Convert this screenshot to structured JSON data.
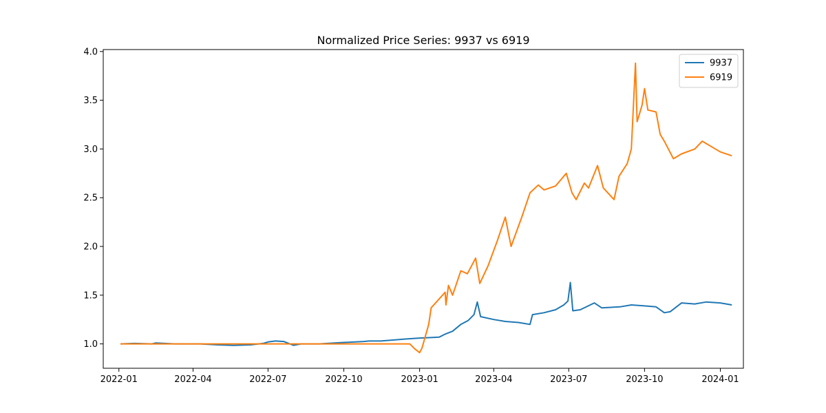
{
  "chart_data": {
    "type": "line",
    "title": "Normalized Price Series: 9937 vs 6919",
    "xlabel": "",
    "ylabel": "",
    "x_ticks": [
      "2022-01",
      "2022-04",
      "2022-07",
      "2022-10",
      "2023-01",
      "2023-04",
      "2023-07",
      "2023-10",
      "2024-01"
    ],
    "xlim": [
      "2021-12-13",
      "2024-01-29"
    ],
    "y_ticks": [
      "1.0",
      "1.5",
      "2.0",
      "2.5",
      "3.0",
      "3.5",
      "4.0"
    ],
    "ylim": [
      0.75,
      4.02
    ],
    "grid": false,
    "legend_position": "top-right",
    "series": [
      {
        "name": "9937",
        "color": "#1f77b4",
        "points": [
          [
            "2022-01-03",
            1.0
          ],
          [
            "2022-01-20",
            1.005
          ],
          [
            "2022-02-10",
            1.0
          ],
          [
            "2022-02-15",
            1.01
          ],
          [
            "2022-03-10",
            1.0
          ],
          [
            "2022-04-10",
            1.0
          ],
          [
            "2022-05-01",
            0.99
          ],
          [
            "2022-05-20",
            0.985
          ],
          [
            "2022-06-10",
            0.99
          ],
          [
            "2022-06-25",
            1.005
          ],
          [
            "2022-07-01",
            1.02
          ],
          [
            "2022-07-10",
            1.03
          ],
          [
            "2022-07-20",
            1.025
          ],
          [
            "2022-08-01",
            0.985
          ],
          [
            "2022-08-10",
            1.0
          ],
          [
            "2022-09-01",
            1.0
          ],
          [
            "2022-09-20",
            1.01
          ],
          [
            "2022-10-01",
            1.015
          ],
          [
            "2022-10-15",
            1.02
          ],
          [
            "2022-10-25",
            1.025
          ],
          [
            "2022-11-01",
            1.03
          ],
          [
            "2022-11-15",
            1.03
          ],
          [
            "2022-12-01",
            1.04
          ],
          [
            "2022-12-15",
            1.05
          ],
          [
            "2023-01-01",
            1.06
          ],
          [
            "2023-01-15",
            1.065
          ],
          [
            "2023-01-25",
            1.07
          ],
          [
            "2023-02-01",
            1.1
          ],
          [
            "2023-02-10",
            1.13
          ],
          [
            "2023-02-20",
            1.2
          ],
          [
            "2023-03-01",
            1.24
          ],
          [
            "2023-03-08",
            1.3
          ],
          [
            "2023-03-12",
            1.43
          ],
          [
            "2023-03-16",
            1.28
          ],
          [
            "2023-04-01",
            1.25
          ],
          [
            "2023-04-15",
            1.23
          ],
          [
            "2023-05-01",
            1.22
          ],
          [
            "2023-05-15",
            1.2
          ],
          [
            "2023-05-18",
            1.3
          ],
          [
            "2023-06-01",
            1.32
          ],
          [
            "2023-06-15",
            1.35
          ],
          [
            "2023-06-25",
            1.4
          ],
          [
            "2023-06-30",
            1.44
          ],
          [
            "2023-07-03",
            1.63
          ],
          [
            "2023-07-06",
            1.34
          ],
          [
            "2023-07-15",
            1.35
          ],
          [
            "2023-08-01",
            1.42
          ],
          [
            "2023-08-10",
            1.37
          ],
          [
            "2023-09-01",
            1.38
          ],
          [
            "2023-09-15",
            1.4
          ],
          [
            "2023-10-01",
            1.39
          ],
          [
            "2023-10-15",
            1.38
          ],
          [
            "2023-10-25",
            1.32
          ],
          [
            "2023-11-01",
            1.33
          ],
          [
            "2023-11-15",
            1.42
          ],
          [
            "2023-12-01",
            1.41
          ],
          [
            "2023-12-15",
            1.43
          ],
          [
            "2024-01-01",
            1.42
          ],
          [
            "2024-01-15",
            1.4
          ]
        ]
      },
      {
        "name": "6919",
        "color": "#ff7f0e",
        "points": [
          [
            "2022-01-03",
            1.0
          ],
          [
            "2022-12-20",
            1.0
          ],
          [
            "2022-12-26",
            0.95
          ],
          [
            "2023-01-01",
            0.91
          ],
          [
            "2023-01-04",
            0.96
          ],
          [
            "2023-01-07",
            1.05
          ],
          [
            "2023-01-12",
            1.2
          ],
          [
            "2023-01-15",
            1.37
          ],
          [
            "2023-02-01",
            1.53
          ],
          [
            "2023-02-02",
            1.4
          ],
          [
            "2023-02-05",
            1.6
          ],
          [
            "2023-02-10",
            1.5
          ],
          [
            "2023-02-20",
            1.75
          ],
          [
            "2023-02-28",
            1.72
          ],
          [
            "2023-03-10",
            1.88
          ],
          [
            "2023-03-15",
            1.62
          ],
          [
            "2023-03-25",
            1.8
          ],
          [
            "2023-04-05",
            2.05
          ],
          [
            "2023-04-15",
            2.3
          ],
          [
            "2023-04-22",
            2.0
          ],
          [
            "2023-05-05",
            2.3
          ],
          [
            "2023-05-15",
            2.55
          ],
          [
            "2023-05-25",
            2.63
          ],
          [
            "2023-06-01",
            2.58
          ],
          [
            "2023-06-15",
            2.62
          ],
          [
            "2023-06-28",
            2.75
          ],
          [
            "2023-07-05",
            2.55
          ],
          [
            "2023-07-10",
            2.48
          ],
          [
            "2023-07-20",
            2.65
          ],
          [
            "2023-07-25",
            2.6
          ],
          [
            "2023-08-05",
            2.83
          ],
          [
            "2023-08-12",
            2.6
          ],
          [
            "2023-08-25",
            2.48
          ],
          [
            "2023-08-31",
            2.72
          ],
          [
            "2023-09-10",
            2.85
          ],
          [
            "2023-09-15",
            3.0
          ],
          [
            "2023-09-20",
            3.88
          ],
          [
            "2023-09-22",
            3.28
          ],
          [
            "2023-09-28",
            3.45
          ],
          [
            "2023-10-01",
            3.62
          ],
          [
            "2023-10-05",
            3.4
          ],
          [
            "2023-10-15",
            3.38
          ],
          [
            "2023-10-20",
            3.15
          ],
          [
            "2023-10-25",
            3.08
          ],
          [
            "2023-11-05",
            2.9
          ],
          [
            "2023-11-15",
            2.95
          ],
          [
            "2023-12-01",
            3.0
          ],
          [
            "2023-12-10",
            3.08
          ],
          [
            "2023-12-20",
            3.03
          ],
          [
            "2024-01-01",
            2.97
          ],
          [
            "2024-01-15",
            2.93
          ]
        ]
      }
    ]
  }
}
